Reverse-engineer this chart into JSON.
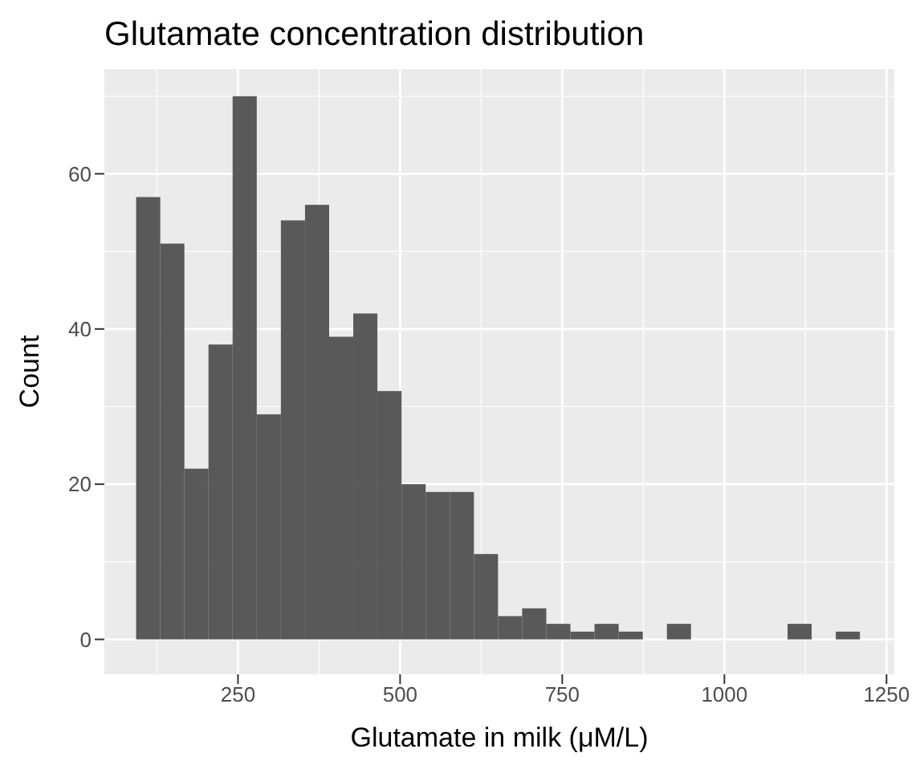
{
  "chart_data": {
    "type": "histogram",
    "title": "Glutamate concentration distribution",
    "xlabel": "Glutamate in milk (μM/L)",
    "ylabel": "Count",
    "bins": [
      93,
      130.2,
      167.4,
      204.6,
      241.8,
      279,
      316.2,
      353.4,
      390.6,
      427.8,
      465,
      502.2,
      539.4,
      576.6,
      613.8,
      651,
      688.2,
      725.4,
      762.6,
      799.8,
      837,
      874.2,
      911.4,
      948.6,
      985.8,
      1023,
      1060.2,
      1097.4,
      1134.6,
      1171.8,
      1209
    ],
    "values": [
      57,
      51,
      22,
      38,
      70,
      29,
      54,
      56,
      39,
      42,
      32,
      20,
      19,
      19,
      11,
      3,
      4,
      2,
      1,
      2,
      1,
      0,
      2,
      0,
      0,
      0,
      0,
      2,
      0,
      1
    ],
    "color": "#595959",
    "xlim": [
      44,
      1262
    ],
    "xticks": [
      250,
      500,
      750,
      1000,
      1250
    ],
    "ylim": [
      -4.5,
      73.5
    ],
    "yticks": [
      0,
      20,
      40,
      60
    ],
    "grid": true
  }
}
